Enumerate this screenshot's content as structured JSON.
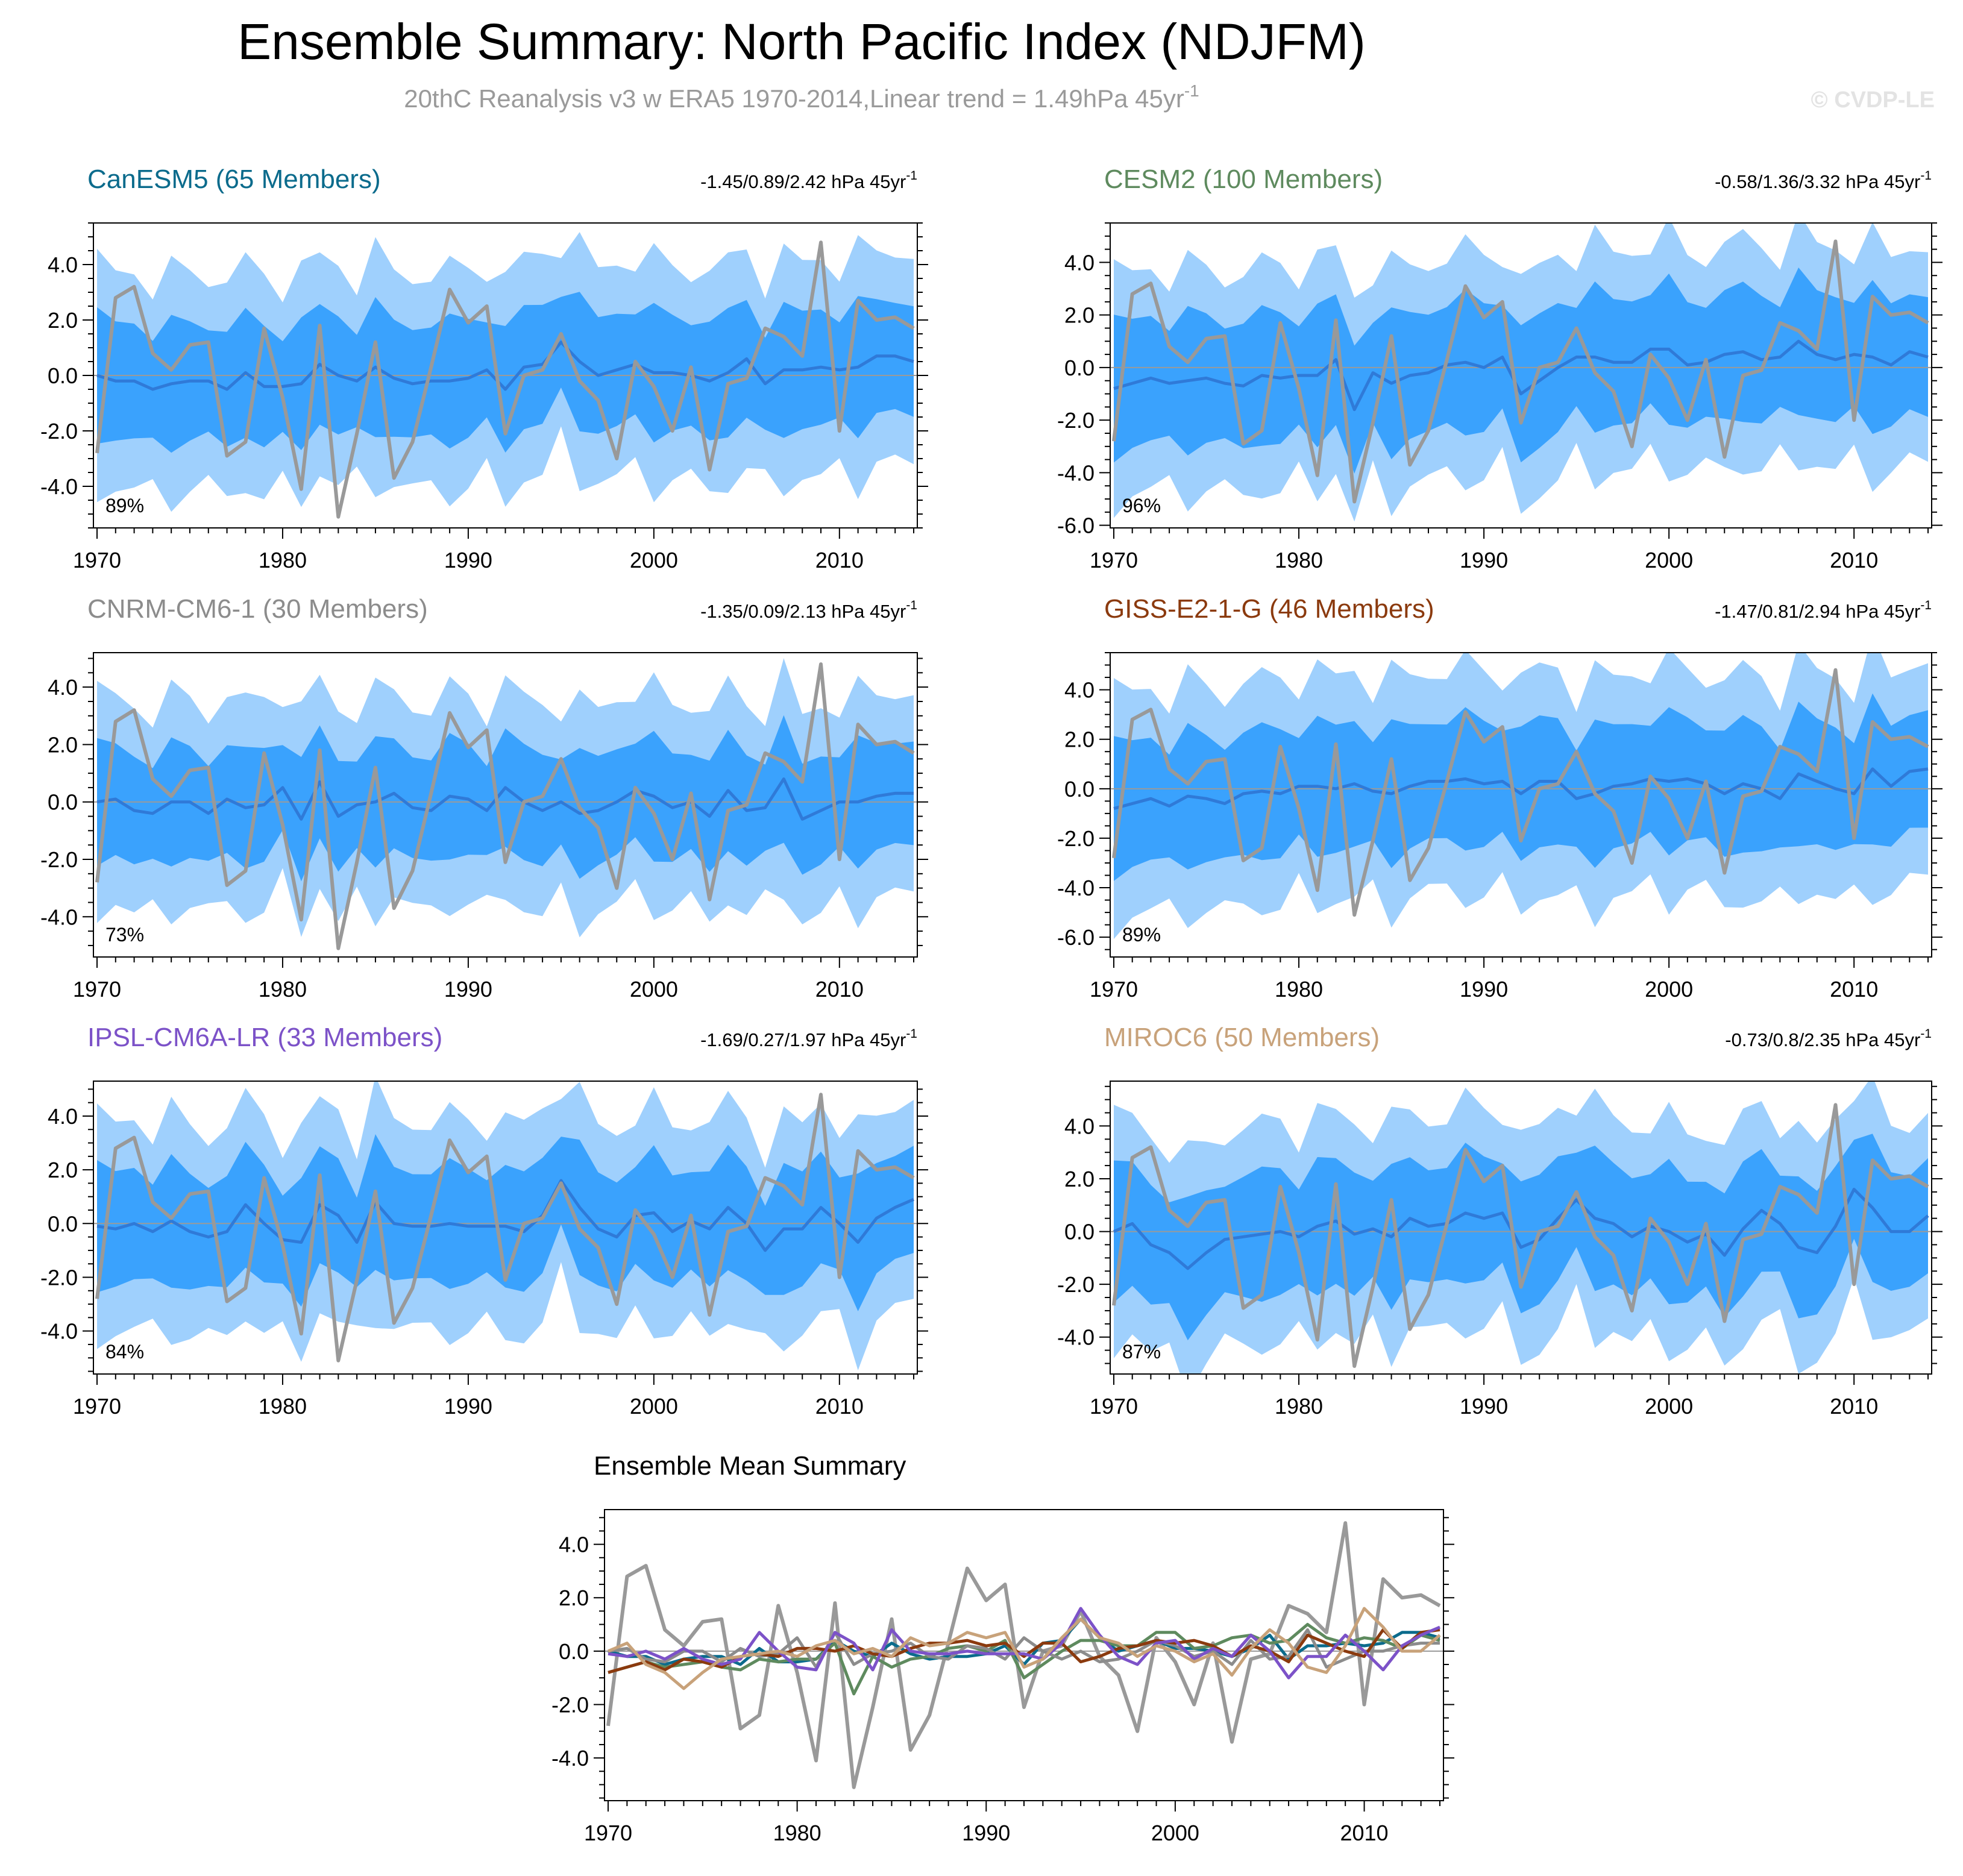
{
  "header": {
    "title": "Ensemble Summary: North Pacific Index (NDJFM)",
    "subtitle_main": "20thC Reanalysis v3 w ERA5 1970-2014,Linear trend = 1.49hPa 45yr",
    "subtitle_sup": "-1",
    "watermark": "© CVDP-LE"
  },
  "colors": {
    "band_outer": "#9fd0fd",
    "band_inner": "#3aa2fd",
    "ens_mean_line": "#2f7ad8",
    "obs_line": "#999999",
    "zero_line": "#9a9a9a",
    "axis": "#000000"
  },
  "years": [
    1970,
    1971,
    1972,
    1973,
    1974,
    1975,
    1976,
    1977,
    1978,
    1979,
    1980,
    1981,
    1982,
    1983,
    1984,
    1985,
    1986,
    1987,
    1988,
    1989,
    1990,
    1991,
    1992,
    1993,
    1994,
    1995,
    1996,
    1997,
    1998,
    1999,
    2000,
    2001,
    2002,
    2003,
    2004,
    2005,
    2006,
    2007,
    2008,
    2009,
    2010,
    2011,
    2012,
    2013,
    2014
  ],
  "observations": [
    -2.8,
    2.8,
    3.2,
    0.8,
    0.2,
    1.1,
    1.2,
    -2.9,
    -2.4,
    1.7,
    -0.8,
    -4.1,
    1.8,
    -5.1,
    -2.1,
    1.2,
    -3.7,
    -2.4,
    0.3,
    3.1,
    1.9,
    2.5,
    -2.1,
    0.0,
    0.2,
    1.5,
    -0.2,
    -0.9,
    -3.0,
    0.5,
    -0.4,
    -2.0,
    0.3,
    -3.4,
    -0.3,
    -0.1,
    1.7,
    1.4,
    0.7,
    4.8,
    -2.0,
    2.7,
    2.0,
    2.1,
    1.7
  ],
  "chart_data": [
    {
      "type": "area",
      "title": "CanESM5 (65 Members)",
      "title_color": "#0b6b8c",
      "stats": "-1.45/0.89/2.42 hPa 45yr",
      "stats_sup": "-1",
      "percent_label": "89%",
      "ylim": [
        -5.5,
        5.5
      ],
      "yticks": [
        4.0,
        2.0,
        0.0,
        -2.0,
        -4.0
      ],
      "xticks": [
        1970,
        1980,
        1990,
        2000,
        2010
      ],
      "ensemble_mean": [
        0.0,
        -0.2,
        -0.2,
        -0.5,
        -0.3,
        -0.2,
        -0.2,
        -0.5,
        0.1,
        -0.4,
        -0.4,
        -0.3,
        0.4,
        0.0,
        -0.2,
        0.3,
        -0.1,
        -0.3,
        -0.2,
        -0.2,
        -0.1,
        0.2,
        -0.5,
        0.3,
        0.4,
        1.2,
        0.5,
        0.0,
        0.2,
        0.4,
        0.1,
        0.1,
        0.0,
        -0.2,
        0.1,
        0.6,
        -0.3,
        0.2,
        0.2,
        0.3,
        0.2,
        0.3,
        0.7,
        0.7,
        0.5
      ],
      "band_width_inner": 2.1,
      "band_width_outer": 3.9
    },
    {
      "type": "area",
      "title": "CESM2 (100 Members)",
      "title_color": "#5e8a5e",
      "stats": "-0.58/1.36/3.32 hPa 45yr",
      "stats_sup": "-1",
      "percent_label": "96%",
      "ylim": [
        -6.1,
        5.5
      ],
      "yticks": [
        4.0,
        2.0,
        0.0,
        -2.0,
        -4.0,
        -6.0
      ],
      "xticks": [
        1970,
        1980,
        1990,
        2000,
        2010
      ],
      "ensemble_mean": [
        -0.8,
        -0.6,
        -0.4,
        -0.6,
        -0.5,
        -0.4,
        -0.6,
        -0.7,
        -0.3,
        -0.4,
        -0.3,
        -0.3,
        0.3,
        -1.6,
        -0.2,
        -0.6,
        -0.3,
        -0.2,
        0.1,
        0.2,
        0.0,
        0.4,
        -1.0,
        -0.5,
        0.0,
        0.4,
        0.4,
        0.2,
        0.2,
        0.7,
        0.7,
        0.1,
        0.2,
        0.5,
        0.6,
        0.3,
        0.4,
        1.0,
        0.5,
        0.3,
        0.5,
        0.4,
        0.1,
        0.6,
        0.4
      ],
      "band_width_inner": 2.4,
      "band_width_outer": 4.2
    },
    {
      "type": "area",
      "title": "CNRM-CM6-1 (30 Members)",
      "title_color": "#8c8c8c",
      "stats": "-1.35/0.09/2.13 hPa 45yr",
      "stats_sup": "-1",
      "percent_label": "73%",
      "ylim": [
        -5.4,
        5.2
      ],
      "yticks": [
        4.0,
        2.0,
        0.0,
        -2.0,
        -4.0
      ],
      "xticks": [
        1970,
        1980,
        1990,
        2000,
        2010
      ],
      "ensemble_mean": [
        0.0,
        0.1,
        -0.3,
        -0.4,
        0.0,
        0.0,
        -0.4,
        0.1,
        -0.2,
        -0.1,
        0.5,
        -0.6,
        0.7,
        -0.5,
        -0.1,
        0.0,
        0.3,
        -0.2,
        -0.3,
        0.2,
        0.1,
        -0.3,
        0.5,
        0.0,
        -0.3,
        0.0,
        -0.4,
        -0.3,
        0.0,
        0.4,
        0.2,
        -0.2,
        0.0,
        -0.5,
        0.4,
        -0.3,
        -0.2,
        0.8,
        -0.6,
        -0.3,
        0.0,
        0.0,
        0.2,
        0.3,
        0.3
      ],
      "band_width_inner": 1.9,
      "band_width_outer": 3.6
    },
    {
      "type": "area",
      "title": "GISS-E2-1-G (46 Members)",
      "title_color": "#8b3a0e",
      "stats": "-1.47/0.81/2.94 hPa 45yr",
      "stats_sup": "-1",
      "percent_label": "89%",
      "ylim": [
        -6.8,
        5.5
      ],
      "yticks": [
        4.0,
        2.0,
        0.0,
        -2.0,
        -4.0,
        -6.0
      ],
      "xticks": [
        1970,
        1980,
        1990,
        2000,
        2010
      ],
      "ensemble_mean": [
        -0.8,
        -0.6,
        -0.4,
        -0.7,
        -0.3,
        -0.4,
        -0.6,
        -0.2,
        -0.1,
        -0.2,
        0.1,
        0.1,
        0.0,
        0.2,
        -0.1,
        -0.2,
        0.1,
        0.3,
        0.3,
        0.4,
        0.2,
        0.3,
        -0.2,
        0.3,
        0.3,
        -0.4,
        -0.2,
        0.1,
        0.2,
        0.4,
        0.3,
        0.4,
        0.2,
        -0.2,
        0.2,
        0.0,
        -0.4,
        0.6,
        0.3,
        0.0,
        -0.2,
        0.8,
        0.1,
        0.7,
        0.8
      ],
      "band_width_inner": 2.5,
      "band_width_outer": 4.5
    },
    {
      "type": "area",
      "title": "IPSL-CM6A-LR (33 Members)",
      "title_color": "#7c52c8",
      "stats": "-1.69/0.27/1.97 hPa 45yr",
      "stats_sup": "-1",
      "percent_label": "84%",
      "ylim": [
        -5.6,
        5.3
      ],
      "yticks": [
        4.0,
        2.0,
        0.0,
        -2.0,
        -4.0
      ],
      "xticks": [
        1970,
        1980,
        1990,
        2000,
        2010
      ],
      "ensemble_mean": [
        -0.1,
        -0.2,
        0.0,
        -0.3,
        0.1,
        -0.3,
        -0.5,
        -0.3,
        0.7,
        0.0,
        -0.6,
        -0.7,
        0.7,
        0.3,
        -0.7,
        0.8,
        0.0,
        -0.1,
        -0.1,
        0.0,
        -0.1,
        -0.1,
        -0.1,
        -0.3,
        0.3,
        1.6,
        0.6,
        -0.2,
        -0.5,
        0.3,
        0.4,
        -0.3,
        0.1,
        -0.2,
        0.6,
        0.0,
        -1.0,
        -0.2,
        -0.2,
        0.6,
        0.0,
        -0.7,
        0.2,
        0.6,
        0.9
      ],
      "band_width_inner": 2.1,
      "band_width_outer": 3.9
    },
    {
      "type": "area",
      "title": "MIROC6 (50 Members)",
      "title_color": "#c8a27a",
      "stats": "-0.73/0.8/2.35 hPa 45yr",
      "stats_sup": "-1",
      "percent_label": "87%",
      "ylim": [
        -5.4,
        5.7
      ],
      "yticks": [
        4.0,
        2.0,
        0.0,
        -2.0,
        -4.0
      ],
      "xticks": [
        1970,
        1980,
        1990,
        2000,
        2010
      ],
      "ensemble_mean": [
        0.0,
        0.3,
        -0.5,
        -0.8,
        -1.4,
        -0.8,
        -0.3,
        -0.2,
        -0.1,
        0.0,
        -0.2,
        0.2,
        0.4,
        -0.1,
        0.1,
        -0.2,
        0.5,
        0.2,
        0.3,
        0.7,
        0.5,
        0.7,
        -0.6,
        -0.3,
        0.5,
        1.2,
        0.5,
        0.3,
        -0.2,
        0.2,
        0.0,
        -0.4,
        -0.1,
        -0.9,
        0.1,
        0.8,
        0.3,
        -0.6,
        -0.8,
        0.2,
        1.6,
        0.9,
        0.0,
        0.0,
        0.6
      ],
      "band_width_inner": 2.3,
      "band_width_outer": 4.1
    },
    {
      "type": "line",
      "title": "Ensemble Mean Summary",
      "ylim": [
        -5.6,
        5.3
      ],
      "yticks": [
        4.0,
        2.0,
        0.0,
        -2.0,
        -4.0
      ],
      "xticks": [
        1970,
        1980,
        1990,
        2000,
        2010
      ],
      "series_from": [
        0,
        1,
        2,
        3,
        4,
        5
      ]
    }
  ]
}
